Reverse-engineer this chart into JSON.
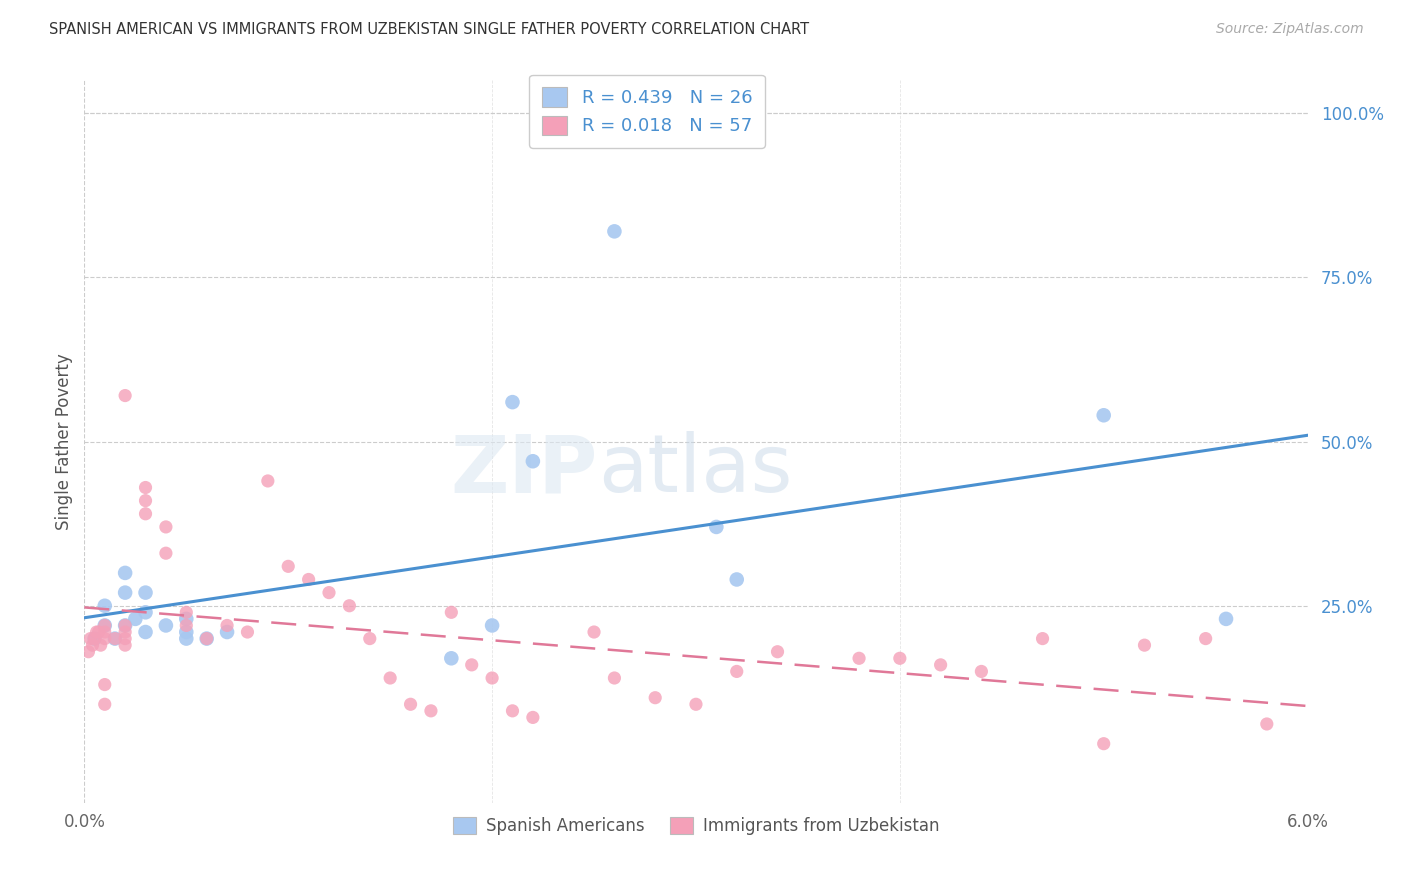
{
  "title": "SPANISH AMERICAN VS IMMIGRANTS FROM UZBEKISTAN SINGLE FATHER POVERTY CORRELATION CHART",
  "source": "Source: ZipAtlas.com",
  "ylabel": "Single Father Poverty",
  "ytick_labels": [
    "100.0%",
    "75.0%",
    "50.0%",
    "25.0%"
  ],
  "ytick_values": [
    1.0,
    0.75,
    0.5,
    0.25
  ],
  "xlim": [
    0.0,
    0.06
  ],
  "ylim": [
    -0.05,
    1.05
  ],
  "legend_R1": "0.439",
  "legend_N1": "26",
  "legend_R2": "0.018",
  "legend_N2": "57",
  "color_blue": "#a8c8f0",
  "color_pink": "#f4a0b8",
  "line_blue": "#4a90d0",
  "line_pink": "#e07898",
  "watermark_zip": "ZIP",
  "watermark_atlas": "atlas",
  "background_color": "#ffffff",
  "grid_color": "#cccccc",
  "spanish_x": [
    0.0005,
    0.001,
    0.001,
    0.0015,
    0.002,
    0.002,
    0.002,
    0.0025,
    0.003,
    0.003,
    0.003,
    0.004,
    0.005,
    0.005,
    0.005,
    0.006,
    0.007,
    0.018,
    0.02,
    0.021,
    0.022,
    0.026,
    0.031,
    0.032,
    0.05,
    0.056
  ],
  "spanish_y": [
    0.2,
    0.22,
    0.25,
    0.2,
    0.22,
    0.27,
    0.3,
    0.23,
    0.21,
    0.24,
    0.27,
    0.22,
    0.2,
    0.21,
    0.23,
    0.2,
    0.21,
    0.17,
    0.22,
    0.56,
    0.47,
    0.82,
    0.37,
    0.29,
    0.54,
    0.23
  ],
  "uzbek_x": [
    0.0002,
    0.0003,
    0.0004,
    0.0005,
    0.0006,
    0.0007,
    0.0008,
    0.001,
    0.001,
    0.001,
    0.001,
    0.001,
    0.0015,
    0.002,
    0.002,
    0.002,
    0.002,
    0.002,
    0.003,
    0.003,
    0.003,
    0.004,
    0.004,
    0.005,
    0.005,
    0.006,
    0.007,
    0.008,
    0.009,
    0.01,
    0.011,
    0.012,
    0.013,
    0.014,
    0.015,
    0.016,
    0.017,
    0.018,
    0.019,
    0.02,
    0.021,
    0.022,
    0.025,
    0.026,
    0.028,
    0.03,
    0.032,
    0.034,
    0.038,
    0.04,
    0.042,
    0.044,
    0.047,
    0.05,
    0.052,
    0.055,
    0.058
  ],
  "uzbek_y": [
    0.18,
    0.2,
    0.19,
    0.2,
    0.21,
    0.21,
    0.19,
    0.2,
    0.21,
    0.22,
    0.1,
    0.13,
    0.2,
    0.19,
    0.2,
    0.21,
    0.22,
    0.57,
    0.39,
    0.41,
    0.43,
    0.33,
    0.37,
    0.22,
    0.24,
    0.2,
    0.22,
    0.21,
    0.44,
    0.31,
    0.29,
    0.27,
    0.25,
    0.2,
    0.14,
    0.1,
    0.09,
    0.24,
    0.16,
    0.14,
    0.09,
    0.08,
    0.21,
    0.14,
    0.11,
    0.1,
    0.15,
    0.18,
    0.17,
    0.17,
    0.16,
    0.15,
    0.2,
    0.04,
    0.19,
    0.2,
    0.07
  ]
}
